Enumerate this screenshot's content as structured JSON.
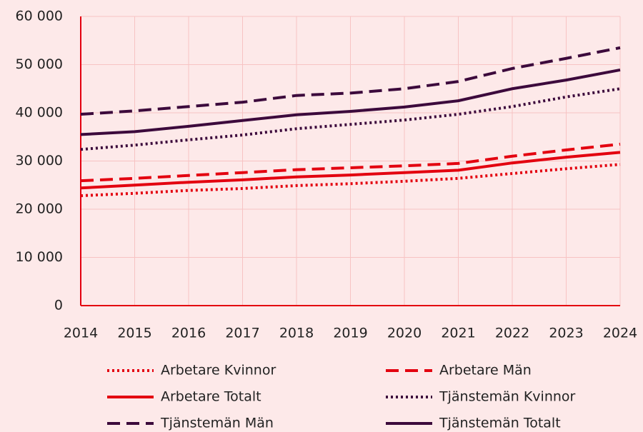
{
  "chart_data": {
    "type": "line",
    "x": [
      2014,
      2015,
      2016,
      2017,
      2018,
      2019,
      2020,
      2021,
      2022,
      2023,
      2024
    ],
    "xlim": [
      2014,
      2024
    ],
    "xticks": [
      2014,
      2015,
      2016,
      2017,
      2018,
      2019,
      2020,
      2021,
      2022,
      2023,
      2024
    ],
    "ylim": [
      0,
      60000
    ],
    "yticks": [
      0,
      {
        "value": 10000,
        "label": "10 000"
      },
      {
        "value": 20000,
        "label": "20 000"
      },
      {
        "value": 30000,
        "label": "30 000"
      },
      {
        "value": 40000,
        "label": "40 000"
      },
      {
        "value": 50000,
        "label": "50 000"
      },
      {
        "value": 60000,
        "label": "60 000"
      }
    ],
    "grid": true,
    "series": [
      {
        "name": "Arbetare Kvinnor",
        "color": "#e3000f",
        "dash": "dotted",
        "values": [
          22800,
          23300,
          23900,
          24300,
          24900,
          25300,
          25800,
          26400,
          27400,
          28400,
          29300
        ]
      },
      {
        "name": "Arbetare Män",
        "color": "#e3000f",
        "dash": "dashed",
        "values": [
          25900,
          26400,
          27000,
          27600,
          28200,
          28600,
          29000,
          29500,
          31000,
          32300,
          33500
        ]
      },
      {
        "name": "Arbetare Totalt",
        "color": "#e3000f",
        "dash": "solid",
        "values": [
          24400,
          25000,
          25600,
          26100,
          26700,
          27100,
          27600,
          28100,
          29600,
          30800,
          31800
        ]
      },
      {
        "name": "Tjänstemän Kvinnor",
        "color": "#3c0a3c",
        "dash": "dotted",
        "values": [
          32400,
          33300,
          34400,
          35400,
          36700,
          37600,
          38500,
          39700,
          41300,
          43300,
          45000
        ]
      },
      {
        "name": "Tjänstemän Män",
        "color": "#3c0a3c",
        "dash": "dashed",
        "values": [
          39700,
          40400,
          41300,
          42200,
          43600,
          44100,
          45000,
          46500,
          49200,
          51300,
          53500
        ]
      },
      {
        "name": "Tjänstemän Totalt",
        "color": "#3c0a3c",
        "dash": "solid",
        "values": [
          35500,
          36100,
          37200,
          38400,
          39600,
          40300,
          41200,
          42500,
          45000,
          46800,
          48900
        ]
      }
    ]
  }
}
